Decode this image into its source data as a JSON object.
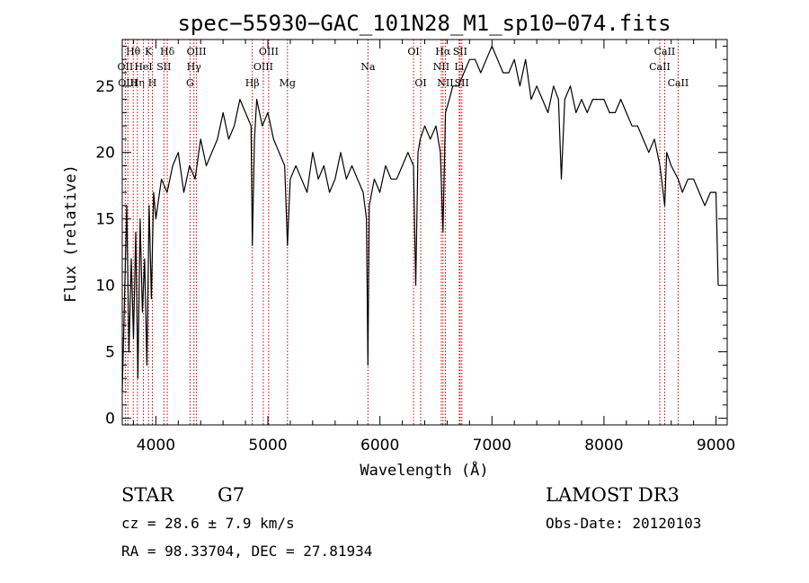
{
  "chart_data": {
    "type": "line",
    "title": "spec−55930−GAC_101N28_M1_sp10−074.fits",
    "xlabel": "Wavelength (Å)",
    "ylabel": "Flux (relative)",
    "xlim": [
      3700,
      9100
    ],
    "ylim": [
      -0.5,
      28.5
    ],
    "xticks": [
      4000,
      5000,
      6000,
      7000,
      8000,
      9000
    ],
    "xtick_labels": [
      "4000",
      "5000",
      "6000",
      "7000",
      "8000",
      "9000"
    ],
    "yticks": [
      0,
      5,
      10,
      15,
      20,
      25
    ],
    "ytick_labels": [
      "0",
      "5",
      "10",
      "15",
      "20",
      "25"
    ],
    "series": [
      {
        "name": "flux",
        "x": [
          3700,
          3720,
          3740,
          3760,
          3780,
          3800,
          3820,
          3840,
          3860,
          3880,
          3900,
          3920,
          3940,
          3960,
          3980,
          4000,
          4050,
          4100,
          4150,
          4200,
          4250,
          4300,
          4350,
          4400,
          4450,
          4500,
          4550,
          4600,
          4650,
          4700,
          4750,
          4800,
          4850,
          4861,
          4880,
          4900,
          4950,
          5000,
          5050,
          5100,
          5150,
          5175,
          5200,
          5250,
          5300,
          5350,
          5400,
          5450,
          5500,
          5550,
          5600,
          5650,
          5700,
          5750,
          5800,
          5850,
          5880,
          5893,
          5905,
          5950,
          6000,
          6050,
          6100,
          6150,
          6200,
          6250,
          6300,
          6320,
          6340,
          6360,
          6400,
          6450,
          6500,
          6540,
          6563,
          6585,
          6620,
          6650,
          6700,
          6750,
          6800,
          6850,
          6900,
          6950,
          7000,
          7050,
          7100,
          7150,
          7200,
          7250,
          7300,
          7350,
          7400,
          7450,
          7500,
          7550,
          7594,
          7620,
          7650,
          7700,
          7750,
          7800,
          7850,
          7900,
          7950,
          8000,
          8050,
          8100,
          8150,
          8200,
          8250,
          8300,
          8350,
          8400,
          8450,
          8500,
          8542,
          8560,
          8600,
          8662,
          8700,
          8750,
          8800,
          8850,
          8900,
          8950,
          9000,
          9020
        ],
        "values": [
          2,
          9,
          16,
          5,
          12,
          6,
          14,
          3,
          15,
          8,
          12,
          4,
          16,
          9,
          17,
          15,
          18,
          17,
          19,
          20,
          17,
          19,
          18,
          21,
          19,
          20,
          21,
          23,
          21,
          22,
          24,
          23,
          22,
          13,
          21,
          24,
          22,
          23,
          21,
          20,
          19,
          13,
          18,
          19,
          18,
          17,
          20,
          18,
          19,
          17,
          18,
          20,
          18,
          19,
          18,
          17,
          15,
          4,
          16,
          18,
          17,
          19,
          18,
          18,
          19,
          20,
          19,
          10,
          20,
          21,
          22,
          21,
          22,
          20,
          14,
          23,
          24,
          25,
          25,
          26,
          27,
          27,
          26,
          27,
          28,
          27,
          26,
          26,
          27,
          25,
          27,
          24,
          25,
          24,
          23,
          25,
          24,
          18,
          24,
          25,
          23,
          24,
          23,
          24,
          24,
          24,
          23,
          23,
          24,
          23,
          22,
          22,
          21,
          20,
          21,
          19,
          16,
          20,
          19,
          18,
          17,
          18,
          18,
          17,
          16,
          17,
          17,
          10
        ]
      }
    ],
    "line_markers": [
      {
        "label": "Hθ",
        "x": 3798,
        "row": 1
      },
      {
        "label": "OII",
        "x": 3727,
        "row": 2
      },
      {
        "label": "OIII",
        "x": 3750,
        "row": 3
      },
      {
        "label": "Hη",
        "x": 3835,
        "row": 3
      },
      {
        "label": "K",
        "x": 3934,
        "row": 1
      },
      {
        "label": "HeI",
        "x": 3889,
        "row": 2
      },
      {
        "label": "H",
        "x": 3969,
        "row": 3
      },
      {
        "label": "Hδ",
        "x": 4102,
        "row": 1
      },
      {
        "label": "SII",
        "x": 4072,
        "row": 2
      },
      {
        "label": "OIII",
        "x": 4363,
        "row": 1
      },
      {
        "label": "Hγ",
        "x": 4340,
        "row": 2
      },
      {
        "label": "G",
        "x": 4305,
        "row": 3
      },
      {
        "label": "Hβ",
        "x": 4861,
        "row": 3
      },
      {
        "label": "OIII",
        "x": 5007,
        "row": 1
      },
      {
        "label": "OIII",
        "x": 4959,
        "row": 2
      },
      {
        "label": "Mg",
        "x": 5175,
        "row": 3
      },
      {
        "label": "Na",
        "x": 5893,
        "row": 2
      },
      {
        "label": "OI",
        "x": 6300,
        "row": 1
      },
      {
        "label": "OI",
        "x": 6364,
        "row": 3
      },
      {
        "label": "Hα",
        "x": 6563,
        "row": 1
      },
      {
        "label": "SII",
        "x": 6716,
        "row": 1
      },
      {
        "label": "NII",
        "x": 6548,
        "row": 2
      },
      {
        "label": "Li",
        "x": 6708,
        "row": 2
      },
      {
        "label": "NII",
        "x": 6584,
        "row": 3
      },
      {
        "label": "SII",
        "x": 6731,
        "row": 3
      },
      {
        "label": "CaII",
        "x": 8542,
        "row": 1
      },
      {
        "label": "CaII",
        "x": 8498,
        "row": 2
      },
      {
        "label": "CaII",
        "x": 8662,
        "row": 3
      }
    ]
  },
  "info": {
    "class": "STAR",
    "subclass": "G7",
    "survey": "LAMOST DR3",
    "cz": "cz = 28.6 ± 7.9 km/s",
    "obs_date": "Obs-Date: 20120103",
    "coords": "RA =  98.33704, DEC =  27.81934"
  }
}
